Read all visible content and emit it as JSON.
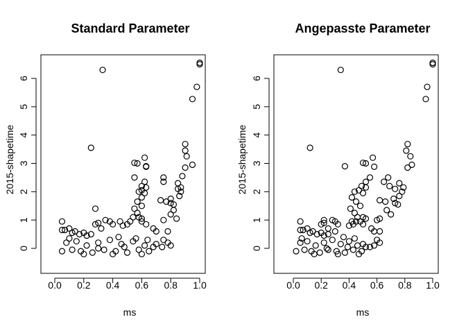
{
  "chart_data": [
    {
      "type": "scatter",
      "title": "Standard Parameter",
      "xlabel": "ms",
      "ylabel": "2015-shapetime",
      "xlim": [
        0.0,
        1.0
      ],
      "ylim": [
        -0.2,
        6.6
      ],
      "xticks": [
        0.0,
        0.2,
        0.4,
        0.6,
        0.8,
        1.0
      ],
      "yticks": [
        0,
        1,
        2,
        3,
        4,
        5,
        6
      ],
      "xtick_labels": [
        "0.0",
        "0.2",
        "0.4",
        "0.6",
        "0.8",
        "1.0"
      ],
      "ytick_labels": [
        "0",
        "1",
        "2",
        "3",
        "4",
        "5",
        "6"
      ],
      "points": [
        [
          1.0,
          6.55
        ],
        [
          1.0,
          6.5
        ],
        [
          0.33,
          6.3
        ],
        [
          0.98,
          5.7
        ],
        [
          0.95,
          5.27
        ],
        [
          0.25,
          3.55
        ],
        [
          0.9,
          3.68
        ],
        [
          0.9,
          3.45
        ],
        [
          0.91,
          3.25
        ],
        [
          0.95,
          2.95
        ],
        [
          0.9,
          2.85
        ],
        [
          0.62,
          3.2
        ],
        [
          0.57,
          3.0
        ],
        [
          0.55,
          3.02
        ],
        [
          0.63,
          2.88
        ],
        [
          0.63,
          2.9
        ],
        [
          0.55,
          2.5
        ],
        [
          0.62,
          2.35
        ],
        [
          0.6,
          2.2
        ],
        [
          0.63,
          2.15
        ],
        [
          0.6,
          2.05
        ],
        [
          0.62,
          1.95
        ],
        [
          0.58,
          2.0
        ],
        [
          0.6,
          1.8
        ],
        [
          0.57,
          1.65
        ],
        [
          0.6,
          1.5
        ],
        [
          0.55,
          1.4
        ],
        [
          0.57,
          1.25
        ],
        [
          0.75,
          2.5
        ],
        [
          0.75,
          2.35
        ],
        [
          0.77,
          1.65
        ],
        [
          0.8,
          1.75
        ],
        [
          0.8,
          1.6
        ],
        [
          0.82,
          1.55
        ],
        [
          0.82,
          1.35
        ],
        [
          0.8,
          1.2
        ],
        [
          0.84,
          1.05
        ],
        [
          0.85,
          2.3
        ],
        [
          0.85,
          2.1
        ],
        [
          0.87,
          2.15
        ],
        [
          0.87,
          2.0
        ],
        [
          0.86,
          1.85
        ],
        [
          0.88,
          2.55
        ],
        [
          0.73,
          1.7
        ],
        [
          0.75,
          1.0
        ],
        [
          0.78,
          0.6
        ],
        [
          0.68,
          0.7
        ],
        [
          0.7,
          0.6
        ],
        [
          0.58,
          1.1
        ],
        [
          0.6,
          1.05
        ],
        [
          0.6,
          0.95
        ],
        [
          0.63,
          0.85
        ],
        [
          0.54,
          1.1
        ],
        [
          0.52,
          0.95
        ],
        [
          0.5,
          0.85
        ],
        [
          0.47,
          0.8
        ],
        [
          0.45,
          0.95
        ],
        [
          0.38,
          0.95
        ],
        [
          0.4,
          0.85
        ],
        [
          0.35,
          1.0
        ],
        [
          0.3,
          0.9
        ],
        [
          0.28,
          0.85
        ],
        [
          0.28,
          1.4
        ],
        [
          0.32,
          0.7
        ],
        [
          0.05,
          0.95
        ],
        [
          0.05,
          0.65
        ],
        [
          0.07,
          0.65
        ],
        [
          0.1,
          0.7
        ],
        [
          0.12,
          0.55
        ],
        [
          0.14,
          0.6
        ],
        [
          0.17,
          0.5
        ],
        [
          0.2,
          0.55
        ],
        [
          0.22,
          0.45
        ],
        [
          0.25,
          0.5
        ],
        [
          0.75,
          0.3
        ],
        [
          0.78,
          0.2
        ],
        [
          0.8,
          0.1
        ],
        [
          0.74,
          0.05
        ],
        [
          0.7,
          0.15
        ],
        [
          0.05,
          -0.1
        ],
        [
          0.08,
          0.2
        ],
        [
          0.12,
          -0.05
        ],
        [
          0.15,
          0.25
        ],
        [
          0.18,
          -0.1
        ],
        [
          0.22,
          0.1
        ],
        [
          0.26,
          -0.15
        ],
        [
          0.3,
          0.2
        ],
        [
          0.34,
          -0.05
        ],
        [
          0.38,
          0.3
        ],
        [
          0.42,
          -0.1
        ],
        [
          0.46,
          0.15
        ],
        [
          0.5,
          -0.15
        ],
        [
          0.54,
          0.25
        ],
        [
          0.58,
          -0.05
        ],
        [
          0.62,
          0.1
        ],
        [
          0.65,
          -0.1
        ],
        [
          0.68,
          0.05
        ],
        [
          0.1,
          0.35
        ],
        [
          0.2,
          -0.2
        ],
        [
          0.3,
          0.0
        ],
        [
          0.4,
          -0.2
        ],
        [
          0.44,
          0.4
        ],
        [
          0.48,
          0.05
        ],
        [
          0.56,
          0.35
        ],
        [
          0.6,
          -0.2
        ],
        [
          0.64,
          0.3
        ]
      ]
    },
    {
      "type": "scatter",
      "title": "Angepasste Parameter",
      "xlabel": "ms",
      "ylabel": "2015-shapetime",
      "xlim": [
        0.0,
        1.0
      ],
      "ylim": [
        -0.2,
        6.6
      ],
      "xticks": [
        0.0,
        0.2,
        0.4,
        0.6,
        0.8,
        1.0
      ],
      "yticks": [
        0,
        1,
        2,
        3,
        4,
        5,
        6
      ],
      "xtick_labels": [
        "0.0",
        "0.2",
        "0.4",
        "0.6",
        "0.8",
        "1.0"
      ],
      "ytick_labels": [
        "0",
        "1",
        "2",
        "3",
        "4",
        "5",
        "6"
      ],
      "points": [
        [
          1.0,
          6.55
        ],
        [
          1.0,
          6.5
        ],
        [
          0.34,
          6.3
        ],
        [
          0.96,
          5.7
        ],
        [
          0.95,
          5.27
        ],
        [
          0.12,
          3.55
        ],
        [
          0.82,
          3.68
        ],
        [
          0.81,
          3.45
        ],
        [
          0.84,
          3.25
        ],
        [
          0.85,
          2.95
        ],
        [
          0.82,
          2.85
        ],
        [
          0.57,
          3.2
        ],
        [
          0.52,
          3.0
        ],
        [
          0.5,
          3.02
        ],
        [
          0.58,
          2.88
        ],
        [
          0.37,
          2.9
        ],
        [
          0.55,
          2.5
        ],
        [
          0.52,
          2.35
        ],
        [
          0.49,
          2.2
        ],
        [
          0.52,
          2.15
        ],
        [
          0.47,
          2.05
        ],
        [
          0.5,
          1.95
        ],
        [
          0.44,
          2.0
        ],
        [
          0.42,
          1.8
        ],
        [
          0.45,
          1.65
        ],
        [
          0.48,
          1.5
        ],
        [
          0.41,
          1.4
        ],
        [
          0.44,
          1.25
        ],
        [
          0.68,
          2.5
        ],
        [
          0.65,
          2.35
        ],
        [
          0.66,
          1.65
        ],
        [
          0.72,
          1.75
        ],
        [
          0.73,
          1.6
        ],
        [
          0.75,
          1.55
        ],
        [
          0.67,
          1.35
        ],
        [
          0.7,
          1.2
        ],
        [
          0.62,
          1.05
        ],
        [
          0.76,
          2.3
        ],
        [
          0.73,
          2.1
        ],
        [
          0.79,
          2.15
        ],
        [
          0.78,
          2.0
        ],
        [
          0.76,
          1.85
        ],
        [
          0.69,
          2.2
        ],
        [
          0.62,
          1.7
        ],
        [
          0.6,
          1.0
        ],
        [
          0.62,
          0.6
        ],
        [
          0.56,
          0.7
        ],
        [
          0.58,
          0.6
        ],
        [
          0.5,
          1.1
        ],
        [
          0.52,
          1.05
        ],
        [
          0.48,
          0.95
        ],
        [
          0.5,
          0.85
        ],
        [
          0.46,
          1.1
        ],
        [
          0.45,
          0.95
        ],
        [
          0.43,
          0.85
        ],
        [
          0.4,
          0.8
        ],
        [
          0.42,
          0.95
        ],
        [
          0.3,
          0.95
        ],
        [
          0.32,
          0.85
        ],
        [
          0.28,
          1.0
        ],
        [
          0.22,
          0.9
        ],
        [
          0.2,
          0.85
        ],
        [
          0.22,
          1.0
        ],
        [
          0.25,
          0.7
        ],
        [
          0.05,
          0.95
        ],
        [
          0.05,
          0.65
        ],
        [
          0.07,
          0.65
        ],
        [
          0.1,
          0.7
        ],
        [
          0.12,
          0.55
        ],
        [
          0.14,
          0.6
        ],
        [
          0.17,
          0.5
        ],
        [
          0.2,
          0.55
        ],
        [
          0.22,
          0.45
        ],
        [
          0.25,
          0.5
        ],
        [
          0.6,
          0.3
        ],
        [
          0.62,
          0.2
        ],
        [
          0.58,
          0.1
        ],
        [
          0.55,
          0.05
        ],
        [
          0.5,
          0.15
        ],
        [
          0.02,
          -0.1
        ],
        [
          0.05,
          0.2
        ],
        [
          0.08,
          -0.05
        ],
        [
          0.1,
          0.25
        ],
        [
          0.13,
          -0.1
        ],
        [
          0.16,
          0.1
        ],
        [
          0.19,
          -0.15
        ],
        [
          0.22,
          0.2
        ],
        [
          0.25,
          -0.05
        ],
        [
          0.28,
          0.3
        ],
        [
          0.31,
          -0.1
        ],
        [
          0.34,
          0.15
        ],
        [
          0.37,
          -0.15
        ],
        [
          0.4,
          0.25
        ],
        [
          0.43,
          -0.05
        ],
        [
          0.46,
          0.1
        ],
        [
          0.49,
          -0.1
        ],
        [
          0.52,
          0.05
        ],
        [
          0.06,
          0.35
        ],
        [
          0.15,
          -0.2
        ],
        [
          0.24,
          0.0
        ],
        [
          0.32,
          -0.2
        ],
        [
          0.36,
          0.4
        ],
        [
          0.39,
          0.05
        ],
        [
          0.44,
          0.35
        ],
        [
          0.47,
          -0.2
        ],
        [
          0.3,
          0.6
        ]
      ]
    }
  ]
}
